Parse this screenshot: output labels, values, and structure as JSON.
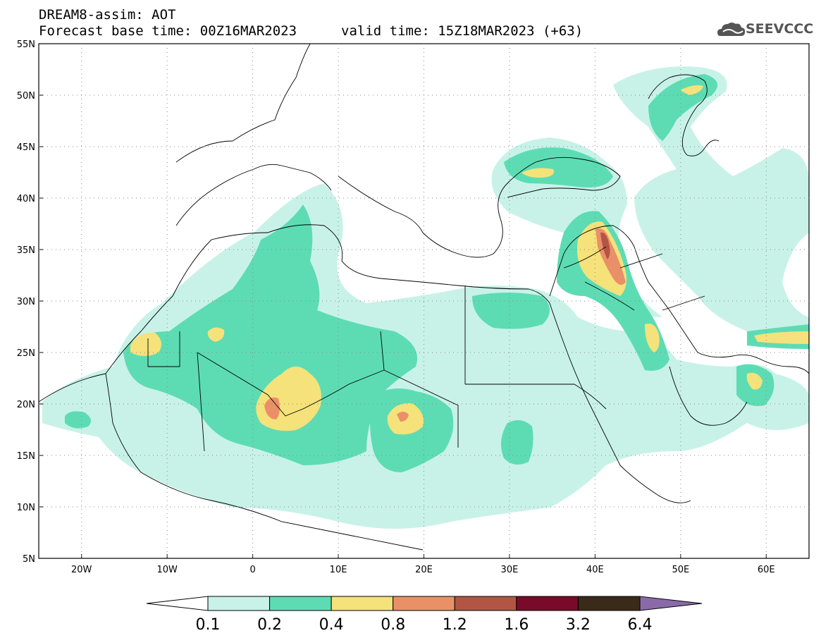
{
  "header": {
    "title_line1": "DREAM8-assim: AOT",
    "title_line2": "Forecast base time: 00Z16MAR2023",
    "valid_time": "valid time: 15Z18MAR2023 (+63)",
    "logo_text": "SEEVCCC"
  },
  "axes": {
    "lat_labels": [
      "55N",
      "50N",
      "45N",
      "40N",
      "35N",
      "30N",
      "25N",
      "20N",
      "15N",
      "10N",
      "5N"
    ],
    "lat_values": [
      55,
      50,
      45,
      40,
      35,
      30,
      25,
      20,
      15,
      10,
      5
    ],
    "lon_labels": [
      "20W",
      "10W",
      "0",
      "10E",
      "20E",
      "30E",
      "40E",
      "50E",
      "60E"
    ],
    "lon_values": [
      -20,
      -10,
      0,
      10,
      20,
      30,
      40,
      50,
      60
    ],
    "lon_range": [
      -25,
      65
    ],
    "lat_range": [
      5,
      55
    ]
  },
  "colorbar": {
    "labels": [
      "0.1",
      "0.2",
      "0.4",
      "0.8",
      "1.2",
      "1.6",
      "3.2",
      "6.4"
    ],
    "colors": [
      "#c8f2e8",
      "#5ddcb4",
      "#f5e27a",
      "#ea9068",
      "#b35544",
      "#7a0a2a",
      "#3a2a1a"
    ],
    "arrow_low_color": "#ffffff",
    "arrow_high_color": "#8a6aa8"
  },
  "field_colors": {
    "c1": "#c8f2e8",
    "c2": "#5ddcb4",
    "c3": "#f5e27a",
    "c4": "#ea9068",
    "c5": "#b35544",
    "c6": "#7a0a2a"
  }
}
